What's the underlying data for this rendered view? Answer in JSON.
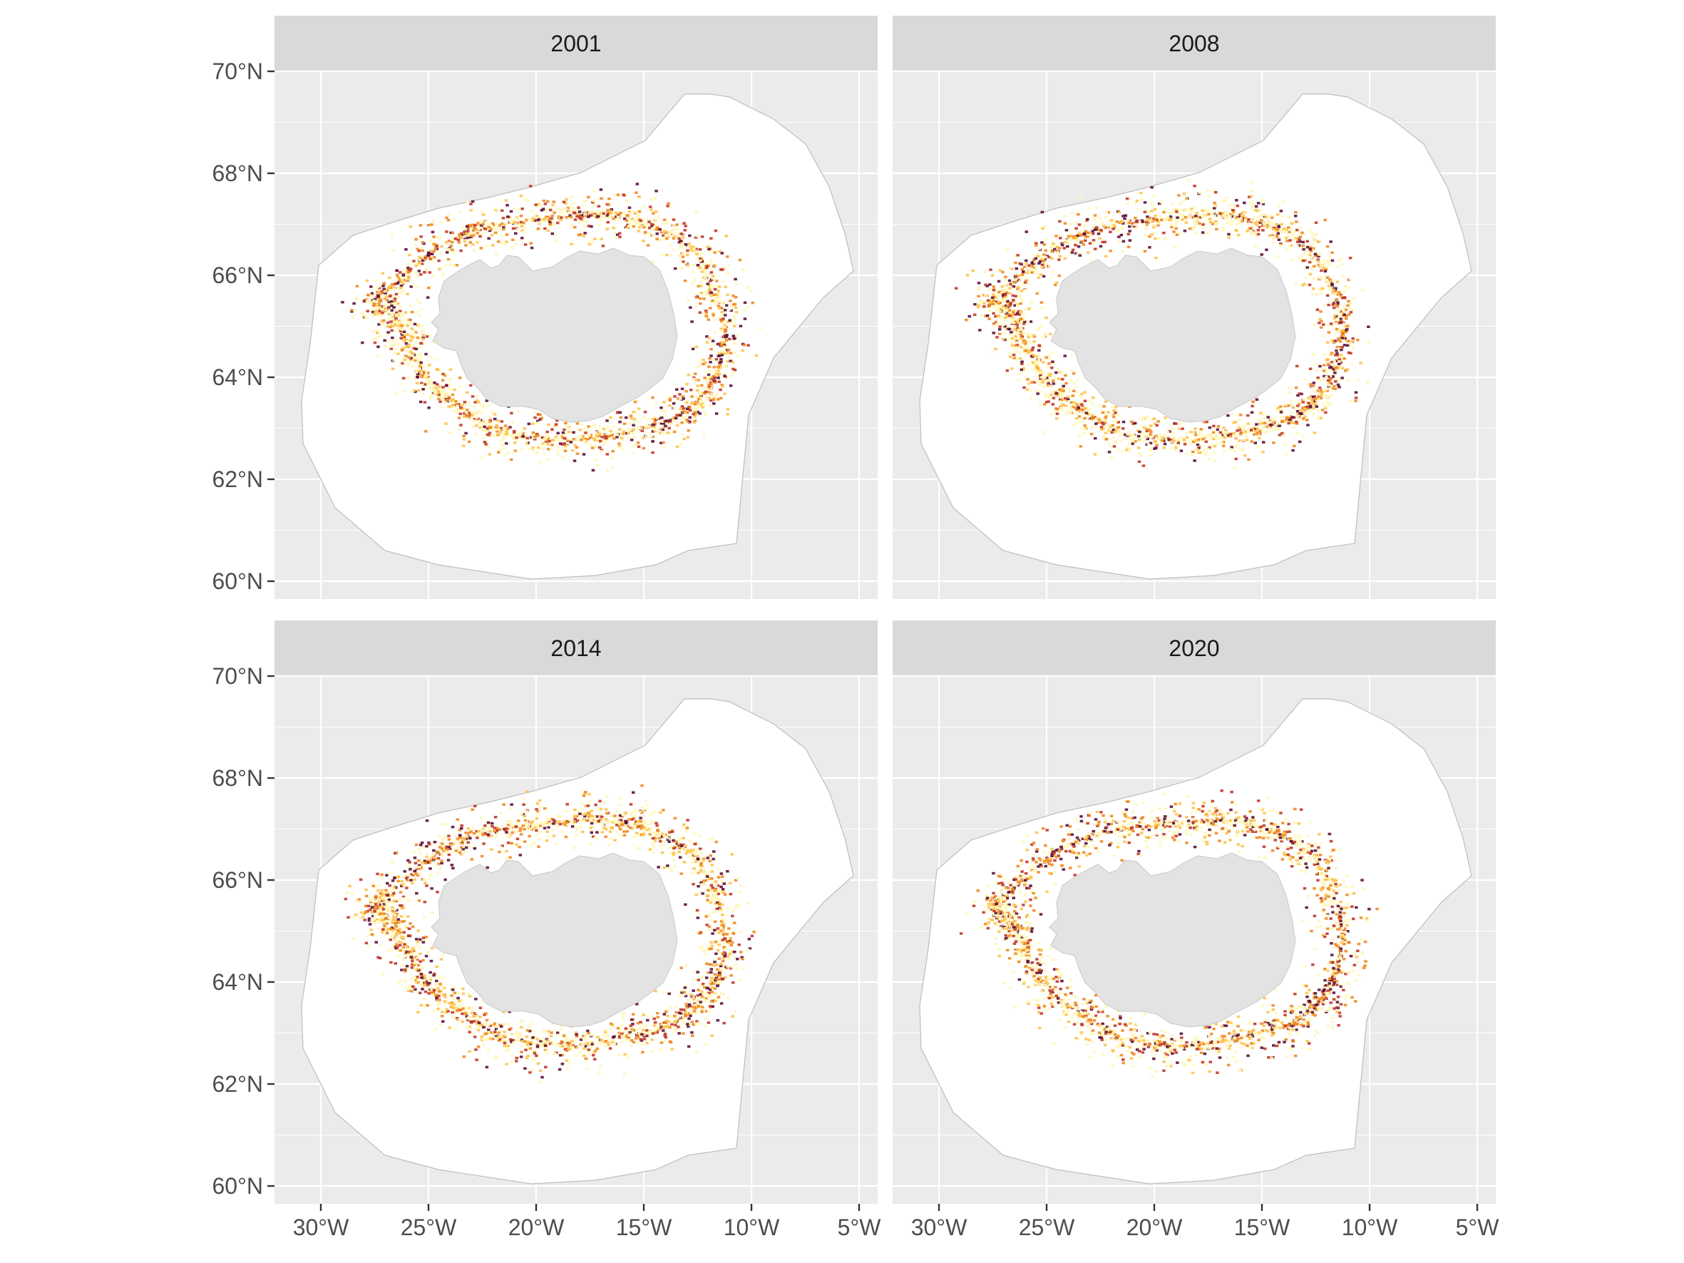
{
  "panels": [
    {
      "year": "2001"
    },
    {
      "year": "2008"
    },
    {
      "year": "2014"
    },
    {
      "year": "2020"
    }
  ],
  "axes": {
    "y_ticks": [
      "70°N",
      "68°N",
      "66°N",
      "64°N",
      "62°N",
      "60°N"
    ],
    "x_ticks": [
      "30°W",
      "25°W",
      "20°W",
      "15°W",
      "10°W",
      "5°W"
    ],
    "lat_values": [
      70,
      68,
      66,
      64,
      62,
      60
    ],
    "lon_values": [
      -30,
      -25,
      -20,
      -15,
      -10,
      -5
    ]
  },
  "colors": {
    "panel_background": "#ebebeb",
    "strip_background": "#d9d9d9",
    "grid": "#ffffff",
    "eez_fill": "#ffffff",
    "land_fill": "#e3e3e3",
    "density_scale": [
      "#fff7bc",
      "#fec44f",
      "#f08a24",
      "#c0392b",
      "#5c0f3a"
    ]
  }
}
